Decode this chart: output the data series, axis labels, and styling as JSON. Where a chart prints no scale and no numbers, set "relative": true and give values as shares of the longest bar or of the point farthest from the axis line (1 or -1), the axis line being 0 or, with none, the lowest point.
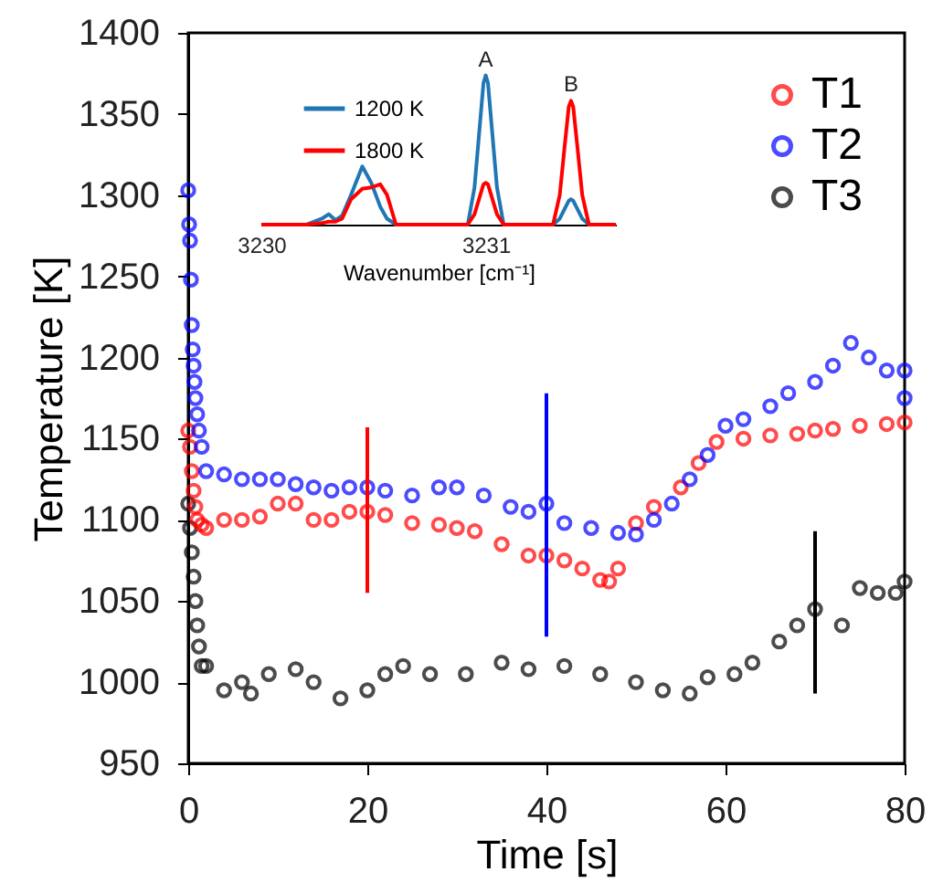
{
  "chart_data": [
    {
      "type": "scatter",
      "xlabel": "Time [s]",
      "ylabel": "Temperature [K]",
      "xlim": [
        0,
        80
      ],
      "xticks": [
        0,
        20,
        40,
        60,
        80
      ],
      "ylim": [
        950,
        1400
      ],
      "yticks": [
        950,
        1000,
        1050,
        1100,
        1150,
        1200,
        1250,
        1300,
        1350,
        1400
      ],
      "grid": false,
      "legend": "top right",
      "marker": "circle",
      "series": [
        {
          "name": "T1",
          "color": "#ff0000",
          "x": [
            0,
            0.2,
            0.4,
            0.6,
            0.8,
            1,
            1.5,
            2,
            4,
            6,
            8,
            10,
            12,
            14,
            16,
            18,
            20,
            22,
            25,
            28,
            30,
            32,
            35,
            38,
            40,
            42,
            44,
            46,
            47,
            48,
            50,
            52,
            55,
            57,
            59,
            62,
            65,
            68,
            70,
            72,
            75,
            78,
            80
          ],
          "values": [
            1155,
            1145,
            1130,
            1118,
            1108,
            1100,
            1097,
            1095,
            1100,
            1100,
            1102,
            1110,
            1110,
            1100,
            1100,
            1105,
            1105,
            1103,
            1098,
            1097,
            1095,
            1093,
            1085,
            1078,
            1078,
            1075,
            1070,
            1063,
            1062,
            1070,
            1098,
            1108,
            1120,
            1135,
            1148,
            1150,
            1152,
            1153,
            1155,
            1156,
            1158,
            1159,
            1160
          ],
          "errors": [
            null,
            null,
            null,
            null,
            null,
            null,
            null,
            null,
            null,
            null,
            null,
            null,
            null,
            null,
            null,
            null,
            [
              1055,
              1157
            ],
            null,
            null,
            null,
            null,
            null,
            null,
            null,
            null,
            null,
            null,
            null,
            null,
            null,
            null,
            null,
            null,
            null,
            null,
            null,
            null,
            null,
            null,
            null,
            null,
            null,
            null
          ]
        },
        {
          "name": "T2",
          "color": "#0000ff",
          "x": [
            0,
            0.1,
            0.2,
            0.3,
            0.4,
            0.5,
            0.6,
            0.7,
            0.8,
            1,
            1.2,
            1.5,
            2,
            4,
            6,
            8,
            10,
            12,
            14,
            16,
            18,
            20,
            22,
            25,
            28,
            30,
            33,
            36,
            38,
            40,
            42,
            45,
            48,
            50,
            52,
            54,
            56,
            58,
            60,
            62,
            65,
            67,
            70,
            72,
            74,
            76,
            78,
            80,
            80
          ],
          "values": [
            1303,
            1282,
            1272,
            1248,
            1220,
            1205,
            1195,
            1185,
            1175,
            1165,
            1155,
            1145,
            1130,
            1128,
            1125,
            1125,
            1125,
            1122,
            1120,
            1118,
            1120,
            1120,
            1118,
            1115,
            1120,
            1120,
            1115,
            1108,
            1105,
            1110,
            1098,
            1095,
            1092,
            1091,
            1100,
            1110,
            1125,
            1140,
            1158,
            1162,
            1170,
            1178,
            1185,
            1195,
            1209,
            1200,
            1192,
            1192,
            1175
          ],
          "errors": [
            null,
            null,
            null,
            null,
            null,
            null,
            null,
            null,
            null,
            null,
            null,
            null,
            null,
            null,
            null,
            null,
            null,
            null,
            null,
            null,
            null,
            null,
            null,
            null,
            null,
            null,
            null,
            null,
            null,
            [
              1028,
              1178
            ],
            null,
            null,
            null,
            null,
            null,
            null,
            null,
            null,
            null,
            null,
            null,
            null,
            null,
            null,
            null,
            null,
            null,
            null,
            null
          ]
        },
        {
          "name": "T3",
          "color": "#000000",
          "x": [
            0,
            0.2,
            0.4,
            0.6,
            0.8,
            1,
            1.2,
            1.5,
            2,
            4,
            6,
            7,
            9,
            12,
            14,
            17,
            20,
            22,
            24,
            27,
            31,
            35,
            38,
            42,
            46,
            50,
            53,
            56,
            58,
            61,
            63,
            66,
            68,
            70,
            73,
            75,
            77,
            79,
            80
          ],
          "values": [
            1110,
            1095,
            1080,
            1065,
            1050,
            1035,
            1022,
            1010,
            1010,
            995,
            1000,
            993,
            1005,
            1008,
            1000,
            990,
            995,
            1005,
            1010,
            1005,
            1005,
            1012,
            1008,
            1010,
            1005,
            1000,
            995,
            993,
            1003,
            1005,
            1012,
            1025,
            1035,
            1045,
            1035,
            1058,
            1055,
            1055,
            1062
          ],
          "errors": [
            null,
            null,
            null,
            null,
            null,
            null,
            null,
            null,
            null,
            null,
            null,
            null,
            null,
            null,
            null,
            null,
            null,
            null,
            null,
            null,
            null,
            null,
            null,
            null,
            null,
            null,
            null,
            null,
            null,
            null,
            null,
            null,
            null,
            [
              993,
              1093
            ],
            null,
            null,
            null,
            null,
            null
          ]
        }
      ]
    },
    {
      "type": "line",
      "relative": true,
      "xlabel": "Wavenumber [cm⁻¹]",
      "xlim": [
        3230,
        3231.58
      ],
      "xticks": [
        3230,
        3231
      ],
      "legend": "top left",
      "x": [
        3230,
        3230.2,
        3230.27,
        3230.3,
        3230.33,
        3230.36,
        3230.4,
        3230.45,
        3230.49,
        3230.53,
        3230.56,
        3230.6,
        3230.92,
        3230.95,
        3230.97,
        3230.99,
        3231,
        3231.01,
        3231.03,
        3231.05,
        3231.08,
        3231.3,
        3231.33,
        3231.35,
        3231.37,
        3231.38,
        3231.39,
        3231.41,
        3231.43,
        3231.46,
        3231.58
      ],
      "annotations": [
        "A",
        "B"
      ],
      "series": [
        {
          "name": "1200 K",
          "color": "#1f77b4",
          "values": [
            0,
            0,
            0.04,
            0.07,
            0.03,
            0.06,
            0.2,
            0.39,
            0.28,
            0.12,
            0.04,
            0,
            0,
            0.25,
            0.6,
            0.95,
            1,
            0.95,
            0.6,
            0.25,
            0,
            0,
            0.04,
            0.1,
            0.16,
            0.17,
            0.16,
            0.1,
            0.04,
            0,
            0
          ]
        },
        {
          "name": "1800 K",
          "color": "#ff0000",
          "values": [
            0,
            0,
            0.01,
            0.02,
            0.02,
            0.04,
            0.17,
            0.24,
            0.25,
            0.27,
            0.2,
            0,
            0,
            0.07,
            0.17,
            0.27,
            0.28,
            0.27,
            0.17,
            0.07,
            0,
            0,
            0.2,
            0.5,
            0.79,
            0.83,
            0.79,
            0.5,
            0.2,
            0,
            0
          ]
        }
      ]
    }
  ]
}
